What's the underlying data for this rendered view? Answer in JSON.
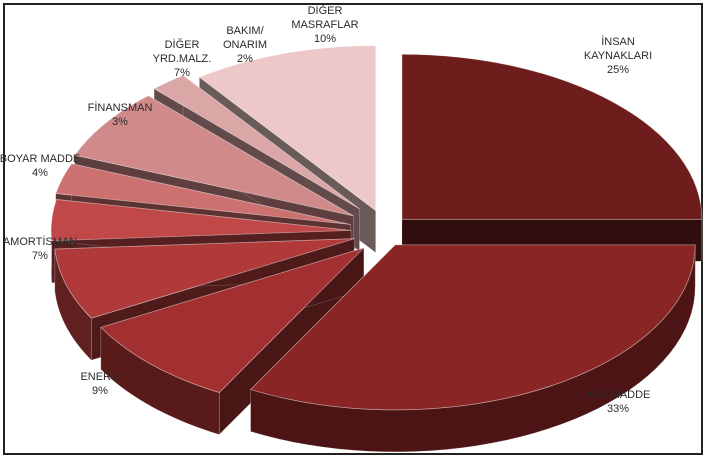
{
  "chart_data": {
    "type": "pie",
    "style": "3d-exploded",
    "slices": [
      {
        "label_lines": [
          "İNSAN",
          "KAYNAKLARI"
        ],
        "value_text": "25%",
        "value": 25,
        "color": "#6e1c1c"
      },
      {
        "label_lines": [
          "ANA MADDE"
        ],
        "value_text": "33%",
        "value": 33,
        "color": "#8a2525"
      },
      {
        "label_lines": [
          "ENERJİ"
        ],
        "value_text": "9%",
        "value": 9,
        "color": "#a23030"
      },
      {
        "label_lines": [
          "AMORTİSMAN"
        ],
        "value_text": "7%",
        "value": 7,
        "color": "#b03a3a"
      },
      {
        "label_lines": [
          "BOYAR MADDE"
        ],
        "value_text": "4%",
        "value": 4,
        "color": "#c04848"
      },
      {
        "label_lines": [
          "FİNANSMAN"
        ],
        "value_text": "3%",
        "value": 3,
        "color": "#cc7070"
      },
      {
        "label_lines": [
          "DİĞER",
          "YRD.MALZ."
        ],
        "value_text": "7%",
        "value": 7,
        "color": "#d08a8a"
      },
      {
        "label_lines": [
          "BAKIM/",
          "ONARIM"
        ],
        "value_text": "2%",
        "value": 2,
        "color": "#dba6a6"
      },
      {
        "label_lines": [
          "DİĞER",
          "MASRAFLAR"
        ],
        "value_text": "10%",
        "value": 10,
        "color": "#ecc8c8"
      }
    ]
  }
}
